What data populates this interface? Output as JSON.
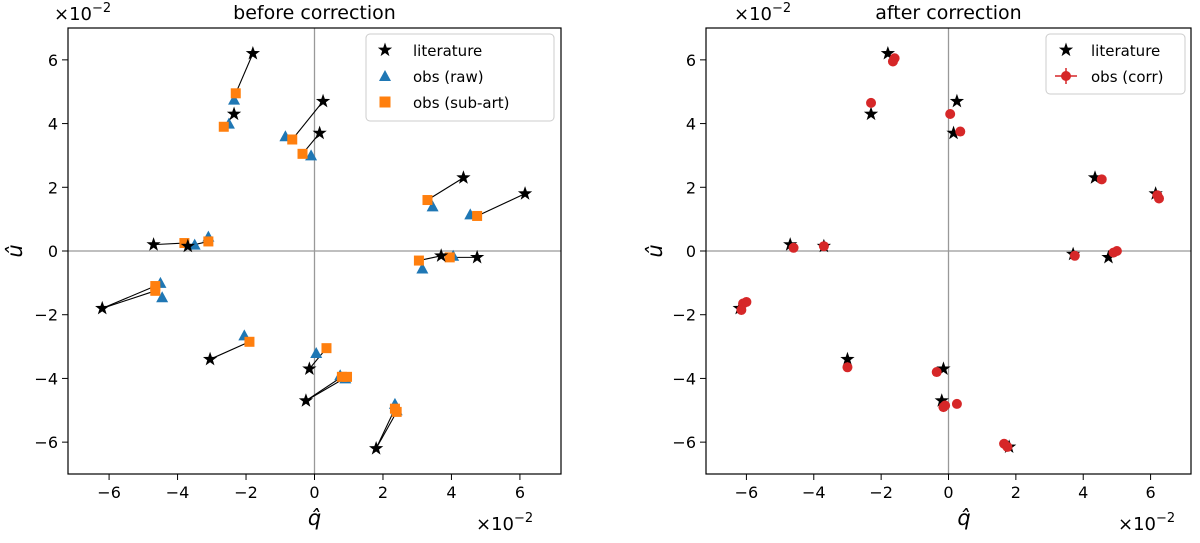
{
  "chart_data": [
    {
      "type": "scatter",
      "title": "before correction",
      "xlabel": "q̂",
      "ylabel": "û",
      "x_scale_label": "×10",
      "x_scale_exp": "−2",
      "y_scale_label": "×10",
      "y_scale_exp": "−2",
      "xlim": [
        -7.2,
        7.2
      ],
      "ylim": [
        -7.0,
        7.0
      ],
      "xticks": [
        -6,
        -4,
        -2,
        0,
        2,
        4,
        6
      ],
      "xtick_labels": [
        "−6",
        "−4",
        "−2",
        "0",
        "2",
        "4",
        "6"
      ],
      "yticks": [
        -6,
        -4,
        -2,
        0,
        2,
        4,
        6
      ],
      "ytick_labels": [
        "−6",
        "−4",
        "−2",
        "0",
        "2",
        "4",
        "6"
      ],
      "legend_position": "top-right",
      "legend": [
        {
          "label": "literature",
          "marker": "star",
          "color": "#000000"
        },
        {
          "label": "obs (raw)",
          "marker": "triangle",
          "color": "#1f77b4"
        },
        {
          "label": "obs (sub-art)",
          "marker": "square",
          "color": "#ff7f0e"
        }
      ],
      "series": [
        {
          "name": "literature",
          "marker": "star",
          "color": "#000000",
          "points": [
            [
              -1.8,
              6.2
            ],
            [
              -2.35,
              4.3
            ],
            [
              0.25,
              4.7
            ],
            [
              0.15,
              3.7
            ],
            [
              4.35,
              2.3
            ],
            [
              6.15,
              1.8
            ],
            [
              -4.7,
              0.2
            ],
            [
              -3.7,
              0.15
            ],
            [
              3.7,
              -0.15
            ],
            [
              4.75,
              -0.2
            ],
            [
              -6.2,
              -1.8
            ],
            [
              -3.05,
              -3.4
            ],
            [
              -0.15,
              -3.7
            ],
            [
              -0.25,
              -4.7
            ],
            [
              1.8,
              -6.2
            ]
          ]
        },
        {
          "name": "obs (raw)",
          "marker": "triangle",
          "color": "#1f77b4",
          "points": [
            [
              -2.35,
              4.75
            ],
            [
              -2.5,
              4.0
            ],
            [
              -0.85,
              3.6
            ],
            [
              -0.1,
              3.0
            ],
            [
              3.45,
              1.4
            ],
            [
              4.55,
              1.15
            ],
            [
              -3.5,
              0.2
            ],
            [
              -3.1,
              0.45
            ],
            [
              3.15,
              -0.55
            ],
            [
              4.05,
              -0.15
            ],
            [
              -4.5,
              -1.0
            ],
            [
              -4.45,
              -1.45
            ],
            [
              -2.05,
              -2.65
            ],
            [
              0.05,
              -3.2
            ],
            [
              0.75,
              -3.9
            ],
            [
              0.9,
              -4.0
            ],
            [
              2.35,
              -4.8
            ],
            [
              2.4,
              -5.0
            ]
          ]
        },
        {
          "name": "obs (sub-art)",
          "marker": "square",
          "color": "#ff7f0e",
          "points": [
            [
              -2.3,
              4.95
            ],
            [
              -2.65,
              3.9
            ],
            [
              -0.65,
              3.5
            ],
            [
              -0.35,
              3.05
            ],
            [
              3.3,
              1.6
            ],
            [
              4.75,
              1.1
            ],
            [
              -3.8,
              0.25
            ],
            [
              -3.1,
              0.3
            ],
            [
              3.05,
              -0.3
            ],
            [
              3.95,
              -0.2
            ],
            [
              -4.65,
              -1.1
            ],
            [
              -4.65,
              -1.25
            ],
            [
              -1.9,
              -2.85
            ],
            [
              0.35,
              -3.05
            ],
            [
              0.8,
              -3.95
            ],
            [
              0.95,
              -3.95
            ],
            [
              2.35,
              -4.95
            ],
            [
              2.4,
              -5.05
            ]
          ]
        }
      ],
      "connections": [
        [
          [
            -1.8,
            6.2
          ],
          [
            -2.3,
            4.95
          ]
        ],
        [
          [
            -2.35,
            4.3
          ],
          [
            -2.65,
            3.9
          ]
        ],
        [
          [
            0.25,
            4.7
          ],
          [
            -0.65,
            3.5
          ]
        ],
        [
          [
            0.15,
            3.7
          ],
          [
            -0.35,
            3.05
          ]
        ],
        [
          [
            4.35,
            2.3
          ],
          [
            3.3,
            1.6
          ]
        ],
        [
          [
            6.15,
            1.8
          ],
          [
            4.75,
            1.1
          ]
        ],
        [
          [
            -4.7,
            0.2
          ],
          [
            -3.8,
            0.25
          ]
        ],
        [
          [
            -3.7,
            0.15
          ],
          [
            -3.1,
            0.3
          ]
        ],
        [
          [
            3.7,
            -0.15
          ],
          [
            3.05,
            -0.3
          ]
        ],
        [
          [
            4.75,
            -0.2
          ],
          [
            3.95,
            -0.2
          ]
        ],
        [
          [
            -6.2,
            -1.8
          ],
          [
            -4.65,
            -1.1
          ]
        ],
        [
          [
            -6.2,
            -1.8
          ],
          [
            -4.65,
            -1.25
          ]
        ],
        [
          [
            -3.05,
            -3.4
          ],
          [
            -1.9,
            -2.85
          ]
        ],
        [
          [
            -0.15,
            -3.7
          ],
          [
            0.35,
            -3.05
          ]
        ],
        [
          [
            -0.25,
            -4.7
          ],
          [
            0.8,
            -3.95
          ]
        ],
        [
          [
            -0.25,
            -4.7
          ],
          [
            0.95,
            -3.95
          ]
        ],
        [
          [
            1.8,
            -6.2
          ],
          [
            2.35,
            -4.95
          ]
        ],
        [
          [
            1.8,
            -6.2
          ],
          [
            2.4,
            -5.05
          ]
        ]
      ]
    },
    {
      "type": "scatter",
      "title": "after correction",
      "xlabel": "q̂",
      "ylabel": "û",
      "x_scale_label": "×10",
      "x_scale_exp": "−2",
      "y_scale_label": "×10",
      "y_scale_exp": "−2",
      "xlim": [
        -7.2,
        7.2
      ],
      "ylim": [
        -7.0,
        7.0
      ],
      "xticks": [
        -6,
        -4,
        -2,
        0,
        2,
        4,
        6
      ],
      "xtick_labels": [
        "−6",
        "−4",
        "−2",
        "0",
        "2",
        "4",
        "6"
      ],
      "yticks": [
        -6,
        -4,
        -2,
        0,
        2,
        4,
        6
      ],
      "ytick_labels": [
        "−6",
        "−4",
        "−2",
        "0",
        "2",
        "4",
        "6"
      ],
      "legend_position": "top-right",
      "legend": [
        {
          "label": "literature",
          "marker": "star",
          "color": "#000000"
        },
        {
          "label": "obs (corr)",
          "marker": "circle-errorbar",
          "color": "#d62728"
        }
      ],
      "series": [
        {
          "name": "literature",
          "marker": "star",
          "color": "#000000",
          "points": [
            [
              -1.8,
              6.2
            ],
            [
              -2.3,
              4.3
            ],
            [
              0.25,
              4.7
            ],
            [
              0.15,
              3.7
            ],
            [
              4.35,
              2.3
            ],
            [
              6.15,
              1.8
            ],
            [
              -4.7,
              0.2
            ],
            [
              -3.7,
              0.15
            ],
            [
              3.7,
              -0.1
            ],
            [
              4.75,
              -0.2
            ],
            [
              -6.2,
              -1.8
            ],
            [
              -3.0,
              -3.4
            ],
            [
              -0.15,
              -3.7
            ],
            [
              -0.2,
              -4.7
            ],
            [
              1.8,
              -6.15
            ]
          ]
        },
        {
          "name": "obs (corr)",
          "marker": "circle",
          "color": "#d62728",
          "points": [
            [
              -1.6,
              6.05
            ],
            [
              -1.65,
              5.95
            ],
            [
              -2.3,
              4.65
            ],
            [
              0.05,
              4.3
            ],
            [
              0.35,
              3.75
            ],
            [
              4.55,
              2.25
            ],
            [
              6.2,
              1.75
            ],
            [
              6.25,
              1.65
            ],
            [
              -4.6,
              0.1
            ],
            [
              -3.7,
              0.15
            ],
            [
              3.75,
              -0.15
            ],
            [
              4.9,
              -0.05
            ],
            [
              5.0,
              0.0
            ],
            [
              -6.1,
              -1.65
            ],
            [
              -6.0,
              -1.6
            ],
            [
              -6.15,
              -1.85
            ],
            [
              -3.0,
              -3.65
            ],
            [
              -0.35,
              -3.8
            ],
            [
              0.25,
              -4.8
            ],
            [
              -0.1,
              -4.85
            ],
            [
              -0.15,
              -4.9
            ],
            [
              1.65,
              -6.05
            ],
            [
              1.75,
              -6.15
            ]
          ]
        }
      ]
    }
  ]
}
